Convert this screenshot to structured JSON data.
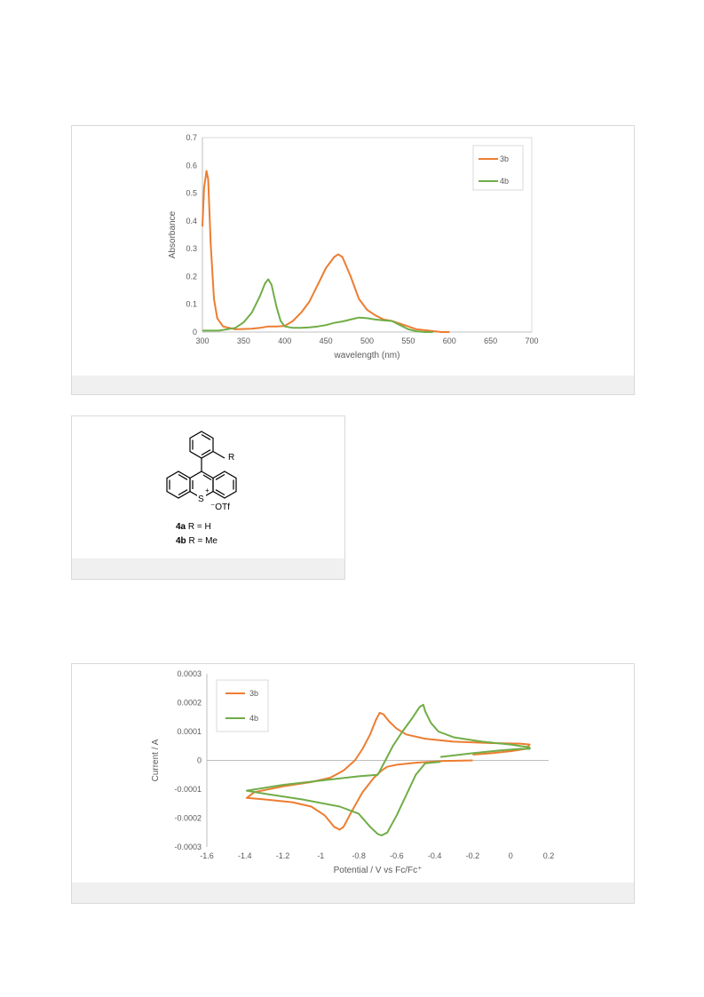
{
  "chart_data": [
    {
      "type": "line",
      "title": "",
      "xlabel": "wavelength (nm)",
      "ylabel": "Absorbance",
      "xlim": [
        300,
        700
      ],
      "ylim": [
        0,
        0.7
      ],
      "xticks": [
        "300",
        "350",
        "400",
        "450",
        "500",
        "550",
        "600",
        "650",
        "700"
      ],
      "yticks": [
        "0",
        "0.1",
        "0.2",
        "0.3",
        "0.4",
        "0.5",
        "0.6",
        "0.7"
      ],
      "legend_position": "top-right",
      "grid": false,
      "series": [
        {
          "name": "3b",
          "color": "#ed7d31",
          "points": [
            [
              300,
              0.38
            ],
            [
              302,
              0.52
            ],
            [
              305,
              0.58
            ],
            [
              307,
              0.55
            ],
            [
              310,
              0.32
            ],
            [
              314,
              0.12
            ],
            [
              318,
              0.05
            ],
            [
              325,
              0.02
            ],
            [
              340,
              0.01
            ],
            [
              360,
              0.012
            ],
            [
              370,
              0.015
            ],
            [
              380,
              0.02
            ],
            [
              390,
              0.02
            ],
            [
              400,
              0.022
            ],
            [
              410,
              0.04
            ],
            [
              420,
              0.07
            ],
            [
              430,
              0.11
            ],
            [
              440,
              0.17
            ],
            [
              450,
              0.23
            ],
            [
              460,
              0.27
            ],
            [
              465,
              0.28
            ],
            [
              470,
              0.27
            ],
            [
              480,
              0.2
            ],
            [
              490,
              0.12
            ],
            [
              500,
              0.08
            ],
            [
              510,
              0.06
            ],
            [
              520,
              0.045
            ],
            [
              530,
              0.04
            ],
            [
              540,
              0.03
            ],
            [
              550,
              0.02
            ],
            [
              560,
              0.01
            ],
            [
              575,
              0.005
            ],
            [
              590,
              0.0
            ],
            [
              600,
              0.0
            ]
          ]
        },
        {
          "name": "4b",
          "color": "#70ad47",
          "points": [
            [
              300,
              0.005
            ],
            [
              320,
              0.005
            ],
            [
              330,
              0.01
            ],
            [
              340,
              0.015
            ],
            [
              350,
              0.035
            ],
            [
              360,
              0.07
            ],
            [
              370,
              0.13
            ],
            [
              376,
              0.175
            ],
            [
              380,
              0.19
            ],
            [
              384,
              0.17
            ],
            [
              390,
              0.09
            ],
            [
              395,
              0.04
            ],
            [
              400,
              0.02
            ],
            [
              410,
              0.015
            ],
            [
              420,
              0.015
            ],
            [
              430,
              0.017
            ],
            [
              440,
              0.02
            ],
            [
              450,
              0.025
            ],
            [
              460,
              0.033
            ],
            [
              470,
              0.038
            ],
            [
              480,
              0.045
            ],
            [
              490,
              0.052
            ],
            [
              500,
              0.05
            ],
            [
              510,
              0.045
            ],
            [
              520,
              0.042
            ],
            [
              530,
              0.04
            ],
            [
              540,
              0.025
            ],
            [
              550,
              0.01
            ],
            [
              560,
              0.003
            ],
            [
              570,
              0.0
            ],
            [
              580,
              0.0
            ]
          ]
        }
      ]
    },
    {
      "type": "line",
      "title": "",
      "xlabel": "Potential / V vs  Fc/Fc⁺",
      "ylabel": "Current / A",
      "xlim": [
        -1.6,
        0.2
      ],
      "ylim": [
        -0.0003,
        0.0003
      ],
      "xticks": [
        "-1.6",
        "-1.4",
        "-1.2",
        "-1",
        "-0.8",
        "-0.6",
        "-0.4",
        "-0.2",
        "0",
        "0.2"
      ],
      "yticks": [
        "-0.0003",
        "-0.0002",
        "-0.0001",
        "0",
        "0.0001",
        "0.0002",
        "0.0003"
      ],
      "legend_position": "top-left",
      "grid": false,
      "series": [
        {
          "name": "3b",
          "color": "#ed7d31",
          "points": [
            [
              -0.2,
              0.0
            ],
            [
              -0.35,
              -2e-06
            ],
            [
              -0.5,
              -8e-06
            ],
            [
              -0.6,
              -1.5e-05
            ],
            [
              -0.65,
              -2.2e-05
            ],
            [
              -0.68,
              -3.5e-05
            ],
            [
              -0.72,
              -6e-05
            ],
            [
              -0.78,
              -0.00011
            ],
            [
              -0.84,
              -0.00018
            ],
            [
              -0.88,
              -0.00023
            ],
            [
              -0.9,
              -0.00024
            ],
            [
              -0.93,
              -0.00023
            ],
            [
              -0.98,
              -0.00019
            ],
            [
              -1.05,
              -0.00016
            ],
            [
              -1.15,
              -0.000145
            ],
            [
              -1.3,
              -0.000135
            ],
            [
              -1.39,
              -0.00013
            ],
            [
              -1.35,
              -0.00011
            ],
            [
              -1.2,
              -9e-05
            ],
            [
              -1.05,
              -7.5e-05
            ],
            [
              -0.95,
              -6e-05
            ],
            [
              -0.88,
              -3.5e-05
            ],
            [
              -0.82,
              0.0
            ],
            [
              -0.78,
              4e-05
            ],
            [
              -0.74,
              9e-05
            ],
            [
              -0.71,
              0.00014
            ],
            [
              -0.69,
              0.000165
            ],
            [
              -0.67,
              0.00016
            ],
            [
              -0.64,
              0.000135
            ],
            [
              -0.6,
              0.00011
            ],
            [
              -0.55,
              9e-05
            ],
            [
              -0.45,
              7.5e-05
            ],
            [
              -0.3,
              6.5e-05
            ],
            [
              -0.1,
              6e-05
            ],
            [
              0.05,
              5.8e-05
            ],
            [
              0.1,
              5.5e-05
            ],
            [
              0.08,
              4e-05
            ],
            [
              0.0,
              3.2e-05
            ],
            [
              -0.1,
              2.5e-05
            ],
            [
              -0.2,
              2e-05
            ]
          ]
        },
        {
          "name": "4b",
          "color": "#70ad47",
          "points": [
            [
              -0.37,
              1.2e-05
            ],
            [
              -0.2,
              2.5e-05
            ],
            [
              -0.05,
              3.5e-05
            ],
            [
              0.05,
              4e-05
            ],
            [
              0.1,
              4e-05
            ],
            [
              0.1,
              4.5e-05
            ],
            [
              0.0,
              5.5e-05
            ],
            [
              -0.15,
              6.5e-05
            ],
            [
              -0.3,
              8e-05
            ],
            [
              -0.38,
              0.0001
            ],
            [
              -0.42,
              0.00013
            ],
            [
              -0.45,
              0.00017
            ],
            [
              -0.46,
              0.000193
            ],
            [
              -0.48,
              0.000185
            ],
            [
              -0.52,
              0.000145
            ],
            [
              -0.57,
              0.0001
            ],
            [
              -0.62,
              5e-05
            ],
            [
              -0.66,
              0.0
            ],
            [
              -0.7,
              -5e-05
            ],
            [
              -0.8,
              -5.5e-05
            ],
            [
              -1.0,
              -7e-05
            ],
            [
              -1.2,
              -8.5e-05
            ],
            [
              -1.39,
              -0.000105
            ],
            [
              -1.3,
              -0.000115
            ],
            [
              -1.1,
              -0.000135
            ],
            [
              -0.9,
              -0.00016
            ],
            [
              -0.8,
              -0.000185
            ],
            [
              -0.74,
              -0.00023
            ],
            [
              -0.7,
              -0.000255
            ],
            [
              -0.68,
              -0.00026
            ],
            [
              -0.65,
              -0.00025
            ],
            [
              -0.6,
              -0.00019
            ],
            [
              -0.55,
              -0.00012
            ],
            [
              -0.5,
              -5e-05
            ],
            [
              -0.45,
              -1e-05
            ],
            [
              -0.37,
              -5e-06
            ]
          ]
        }
      ]
    }
  ],
  "structure": {
    "substituent": "R",
    "charge": "+",
    "heteroatom": "S",
    "counterion": "⁻OTf",
    "compound_a_id": "4a",
    "compound_a_sub": " R = H",
    "compound_b_id": "4b",
    "compound_b_sub": " R = Me"
  }
}
